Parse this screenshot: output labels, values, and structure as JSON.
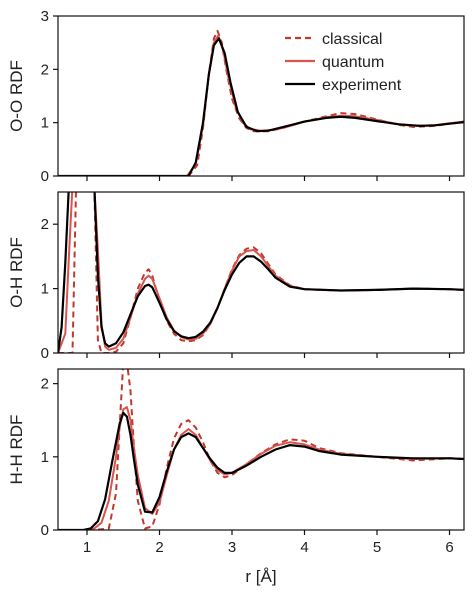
{
  "chart_data": [
    {
      "type": "line",
      "ylabel": "O-O RDF",
      "xlim": [
        0.6,
        6.2
      ],
      "ylim": [
        0,
        3
      ],
      "xticks": [
        1,
        2,
        3,
        4,
        5,
        6
      ],
      "show_x_tick_labels": false,
      "yticks": [
        0,
        1,
        2,
        3
      ],
      "legend": {
        "placement": "top-right",
        "entries": [
          {
            "series_index": 0,
            "label": "classical"
          },
          {
            "series_index": 1,
            "label": "quantum"
          },
          {
            "series_index": 2,
            "label": "experiment"
          }
        ]
      },
      "series": [
        {
          "name": "classical",
          "color": "#c0392b",
          "style": "dashed",
          "x": [
            0.6,
            2.0,
            2.4,
            2.52,
            2.6,
            2.68,
            2.75,
            2.8,
            2.86,
            2.92,
            3.0,
            3.1,
            3.2,
            3.3,
            3.5,
            3.7,
            4.0,
            4.3,
            4.5,
            4.7,
            5.0,
            5.3,
            5.5,
            5.8,
            6.0,
            6.2
          ],
          "y": [
            0,
            0,
            0,
            0.2,
            0.9,
            1.9,
            2.58,
            2.72,
            2.5,
            2.0,
            1.45,
            1.08,
            0.9,
            0.84,
            0.84,
            0.9,
            1.02,
            1.12,
            1.18,
            1.16,
            1.06,
            0.96,
            0.92,
            0.94,
            0.98,
            1.02
          ]
        },
        {
          "name": "quantum",
          "color": "#d9534f",
          "style": "solid",
          "x": [
            0.6,
            2.0,
            2.38,
            2.5,
            2.6,
            2.68,
            2.75,
            2.81,
            2.88,
            2.95,
            3.05,
            3.15,
            3.25,
            3.4,
            3.6,
            3.8,
            4.0,
            4.3,
            4.5,
            4.7,
            5.0,
            5.3,
            5.5,
            5.8,
            6.0,
            6.2
          ],
          "y": [
            0,
            0,
            0,
            0.22,
            0.95,
            1.9,
            2.5,
            2.63,
            2.35,
            1.85,
            1.3,
            1.0,
            0.88,
            0.85,
            0.87,
            0.94,
            1.02,
            1.1,
            1.13,
            1.12,
            1.05,
            0.97,
            0.94,
            0.95,
            0.99,
            1.02
          ]
        },
        {
          "name": "experiment",
          "color": "#000000",
          "style": "solid",
          "x": [
            0.6,
            2.0,
            2.4,
            2.5,
            2.6,
            2.68,
            2.75,
            2.82,
            2.9,
            2.98,
            3.08,
            3.2,
            3.35,
            3.5,
            3.8,
            4.0,
            4.3,
            4.5,
            4.7,
            5.0,
            5.3,
            5.6,
            5.8,
            6.0,
            6.2
          ],
          "y": [
            0,
            0,
            0,
            0.25,
            1.0,
            1.9,
            2.45,
            2.58,
            2.3,
            1.75,
            1.2,
            0.92,
            0.84,
            0.85,
            0.95,
            1.02,
            1.09,
            1.11,
            1.09,
            1.03,
            0.97,
            0.94,
            0.95,
            0.98,
            1.01
          ]
        }
      ]
    },
    {
      "type": "line",
      "ylabel": "O-H RDF",
      "xlim": [
        0.6,
        6.2
      ],
      "ylim": [
        0,
        2.5
      ],
      "xticks": [
        1,
        2,
        3,
        4,
        5,
        6
      ],
      "show_x_tick_labels": false,
      "yticks": [
        0,
        1,
        2
      ],
      "series": [
        {
          "name": "classical",
          "color": "#c0392b",
          "style": "dashed",
          "x": [
            0.6,
            0.8,
            0.85,
            0.9,
            0.95,
            1.0,
            1.05,
            1.1,
            1.15,
            1.2,
            1.3,
            1.4,
            1.5,
            1.6,
            1.7,
            1.8,
            1.85,
            1.9,
            2.0,
            2.1,
            2.2,
            2.3,
            2.4,
            2.5,
            2.6,
            2.7,
            2.8,
            2.9,
            3.0,
            3.1,
            3.2,
            3.3,
            3.4,
            3.5,
            3.6,
            3.8,
            4.0,
            4.5,
            5.0,
            5.5,
            6.0,
            6.2
          ],
          "y": [
            0,
            0,
            2.6,
            2.6,
            2.6,
            2.6,
            2.6,
            2.6,
            0.2,
            0,
            0,
            0.02,
            0.15,
            0.55,
            1.0,
            1.25,
            1.3,
            1.2,
            0.8,
            0.5,
            0.3,
            0.2,
            0.18,
            0.2,
            0.28,
            0.45,
            0.7,
            1.0,
            1.3,
            1.52,
            1.62,
            1.64,
            1.55,
            1.38,
            1.22,
            1.05,
            0.99,
            0.97,
            0.98,
            1.0,
            0.99,
            0.98
          ]
        },
        {
          "name": "quantum",
          "color": "#d9534f",
          "style": "solid",
          "x": [
            0.6,
            0.7,
            0.75,
            0.8,
            0.85,
            0.9,
            0.95,
            1.0,
            1.05,
            1.1,
            1.15,
            1.2,
            1.25,
            1.3,
            1.4,
            1.5,
            1.6,
            1.7,
            1.8,
            1.85,
            1.9,
            2.0,
            2.1,
            2.2,
            2.3,
            2.4,
            2.5,
            2.6,
            2.7,
            2.8,
            2.9,
            3.0,
            3.1,
            3.2,
            3.3,
            3.4,
            3.5,
            3.6,
            3.8,
            4.0,
            4.5,
            5.0,
            5.5,
            6.0,
            6.2
          ],
          "y": [
            0,
            0.3,
            1.5,
            2.6,
            2.6,
            2.6,
            2.6,
            2.6,
            2.6,
            2.6,
            1.6,
            0.45,
            0.1,
            0.05,
            0.08,
            0.22,
            0.55,
            0.92,
            1.15,
            1.2,
            1.15,
            0.85,
            0.55,
            0.35,
            0.25,
            0.21,
            0.22,
            0.3,
            0.45,
            0.7,
            1.0,
            1.28,
            1.5,
            1.58,
            1.6,
            1.5,
            1.35,
            1.2,
            1.04,
            0.99,
            0.97,
            0.98,
            1.0,
            0.99,
            0.98
          ]
        },
        {
          "name": "experiment",
          "color": "#000000",
          "style": "solid",
          "x": [
            0.6,
            0.65,
            0.7,
            0.75,
            0.8,
            0.85,
            0.9,
            0.95,
            1.0,
            1.05,
            1.1,
            1.15,
            1.2,
            1.25,
            1.3,
            1.4,
            1.5,
            1.6,
            1.7,
            1.8,
            1.85,
            1.9,
            2.0,
            2.1,
            2.2,
            2.3,
            2.4,
            2.5,
            2.6,
            2.7,
            2.8,
            2.9,
            3.0,
            3.1,
            3.2,
            3.3,
            3.4,
            3.5,
            3.6,
            3.8,
            4.0,
            4.5,
            5.0,
            5.5,
            6.0,
            6.2
          ],
          "y": [
            0,
            0.4,
            1.4,
            2.6,
            2.6,
            2.6,
            2.6,
            2.6,
            2.6,
            2.6,
            2.6,
            1.2,
            0.4,
            0.15,
            0.1,
            0.15,
            0.32,
            0.6,
            0.88,
            1.04,
            1.06,
            1.02,
            0.78,
            0.52,
            0.34,
            0.26,
            0.23,
            0.25,
            0.33,
            0.47,
            0.7,
            0.98,
            1.22,
            1.4,
            1.5,
            1.5,
            1.42,
            1.3,
            1.17,
            1.03,
            0.99,
            0.97,
            0.98,
            1.0,
            0.99,
            0.98
          ]
        }
      ]
    },
    {
      "type": "line",
      "ylabel": "H-H RDF",
      "xlabel": "r [Å]",
      "xlim": [
        0.6,
        6.2
      ],
      "ylim": [
        0,
        2.2
      ],
      "xticks": [
        1,
        2,
        3,
        4,
        5,
        6
      ],
      "show_x_tick_labels": true,
      "yticks": [
        0,
        1,
        2
      ],
      "series": [
        {
          "name": "classical",
          "color": "#c0392b",
          "style": "dashed",
          "x": [
            0.6,
            1.1,
            1.3,
            1.4,
            1.45,
            1.5,
            1.55,
            1.6,
            1.65,
            1.7,
            1.8,
            1.9,
            2.0,
            2.1,
            2.2,
            2.3,
            2.4,
            2.5,
            2.6,
            2.7,
            2.8,
            2.9,
            3.0,
            3.2,
            3.4,
            3.6,
            3.8,
            4.0,
            4.2,
            4.5,
            5.0,
            5.5,
            6.0,
            6.2
          ],
          "y": [
            0,
            0,
            0.02,
            0.5,
            1.4,
            2.3,
            2.3,
            1.9,
            1.1,
            0.4,
            0.02,
            0.05,
            0.35,
            0.85,
            1.25,
            1.45,
            1.5,
            1.4,
            1.2,
            0.95,
            0.78,
            0.72,
            0.75,
            0.9,
            1.05,
            1.17,
            1.24,
            1.22,
            1.12,
            1.05,
            1.0,
            0.95,
            0.98,
            0.97
          ]
        },
        {
          "name": "quantum",
          "color": "#d9534f",
          "style": "solid",
          "x": [
            0.6,
            1.0,
            1.1,
            1.2,
            1.3,
            1.4,
            1.45,
            1.5,
            1.55,
            1.6,
            1.65,
            1.7,
            1.8,
            1.9,
            2.0,
            2.1,
            2.2,
            2.3,
            2.4,
            2.5,
            2.6,
            2.7,
            2.8,
            2.9,
            3.0,
            3.2,
            3.4,
            3.6,
            3.8,
            4.0,
            4.2,
            4.5,
            5.0,
            5.5,
            6.0,
            6.2
          ],
          "y": [
            0,
            0,
            0.02,
            0.1,
            0.4,
            1.0,
            1.4,
            1.65,
            1.68,
            1.5,
            1.1,
            0.75,
            0.3,
            0.22,
            0.38,
            0.75,
            1.1,
            1.3,
            1.38,
            1.3,
            1.12,
            0.95,
            0.82,
            0.76,
            0.78,
            0.9,
            1.04,
            1.15,
            1.2,
            1.17,
            1.1,
            1.04,
            1.0,
            0.97,
            0.98,
            0.97
          ]
        },
        {
          "name": "experiment",
          "color": "#000000",
          "style": "solid",
          "x": [
            0.6,
            0.95,
            1.05,
            1.15,
            1.25,
            1.35,
            1.45,
            1.5,
            1.55,
            1.6,
            1.65,
            1.7,
            1.8,
            1.9,
            2.0,
            2.1,
            2.2,
            2.3,
            2.4,
            2.5,
            2.6,
            2.7,
            2.8,
            2.9,
            3.0,
            3.2,
            3.4,
            3.6,
            3.8,
            4.0,
            4.2,
            4.5,
            5.0,
            5.5,
            6.0,
            6.2
          ],
          "y": [
            0,
            0,
            0.02,
            0.12,
            0.42,
            0.95,
            1.45,
            1.6,
            1.55,
            1.3,
            0.95,
            0.62,
            0.25,
            0.24,
            0.45,
            0.8,
            1.1,
            1.27,
            1.32,
            1.27,
            1.12,
            0.97,
            0.85,
            0.78,
            0.78,
            0.88,
            1.0,
            1.1,
            1.16,
            1.14,
            1.08,
            1.03,
            1.0,
            0.98,
            0.98,
            0.97
          ]
        }
      ]
    }
  ]
}
